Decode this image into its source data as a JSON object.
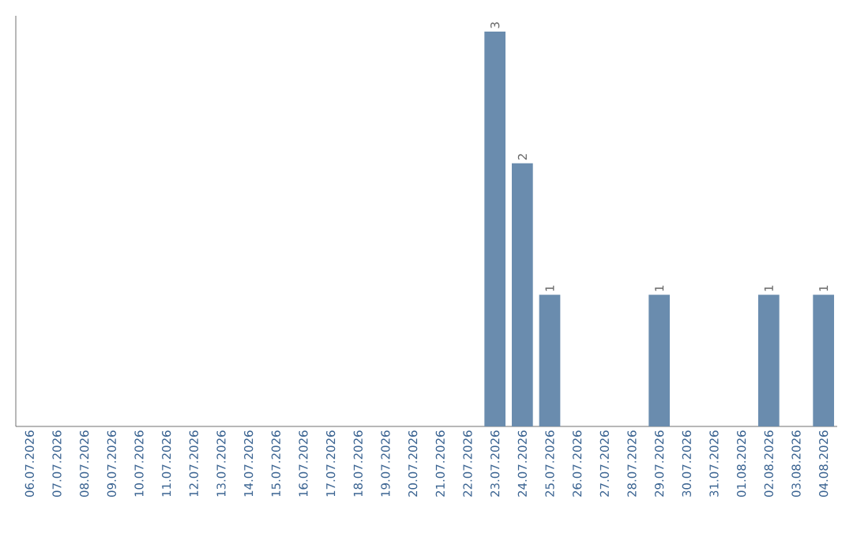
{
  "chart_data": {
    "type": "bar",
    "categories": [
      "06.07.2026",
      "07.07.2026",
      "08.07.2026",
      "09.07.2026",
      "10.07.2026",
      "11.07.2026",
      "12.07.2026",
      "13.07.2026",
      "14.07.2026",
      "15.07.2026",
      "16.07.2026",
      "17.07.2026",
      "18.07.2026",
      "19.07.2026",
      "20.07.2026",
      "21.07.2026",
      "22.07.2026",
      "23.07.2026",
      "24.07.2026",
      "25.07.2026",
      "26.07.2026",
      "27.07.2026",
      "28.07.2026",
      "29.07.2026",
      "30.07.2026",
      "31.07.2026",
      "01.08.2026",
      "02.08.2026",
      "03.08.2026",
      "04.08.2026"
    ],
    "values": [
      null,
      null,
      null,
      null,
      null,
      null,
      null,
      null,
      null,
      null,
      null,
      null,
      null,
      null,
      null,
      null,
      null,
      3,
      2,
      1,
      null,
      null,
      null,
      1,
      null,
      null,
      null,
      1,
      null,
      1
    ],
    "data_labels": true,
    "color": "#6a8cae",
    "ylim": [
      0,
      3.12
    ]
  }
}
